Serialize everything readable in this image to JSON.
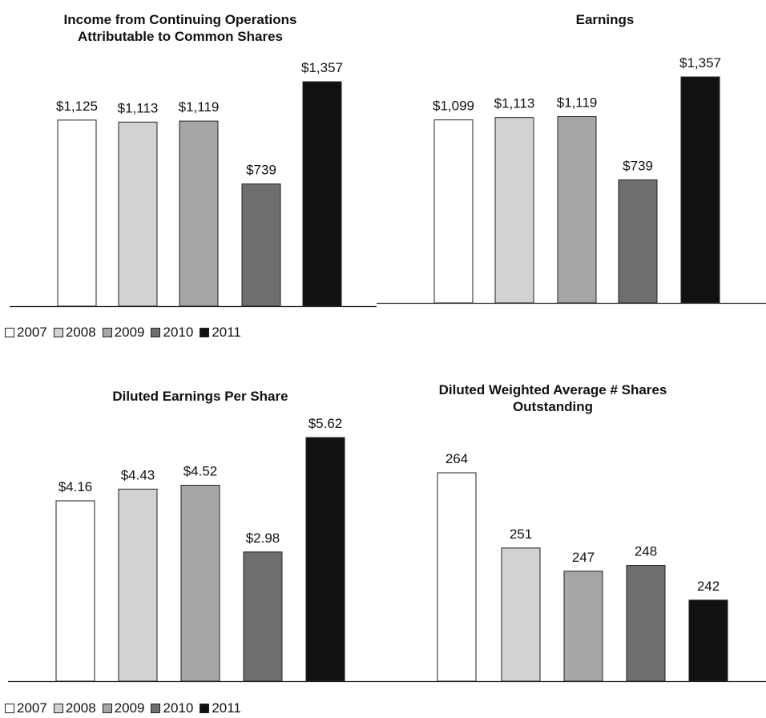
{
  "colors": {
    "2007": "#ffffff",
    "2008": "#d2d2d2",
    "2009": "#a6a6a6",
    "2010": "#6e6e6e",
    "2011": "#111111"
  },
  "legend": [
    "2007",
    "2008",
    "2009",
    "2010",
    "2011"
  ],
  "chart_data": [
    {
      "type": "bar",
      "title": "Income from Continuing Operations Attributable to Common Shares",
      "title_lines": [
        "Income from Continuing Operations",
        "Attributable to Common Shares"
      ],
      "categories": [
        "2007",
        "2008",
        "2009",
        "2010",
        "2011"
      ],
      "values": [
        1125,
        1113,
        1119,
        739,
        1357
      ],
      "labels": [
        "$1,125",
        "$1,113",
        "$1,119",
        "$739",
        "$1,357"
      ],
      "ylim": [
        0,
        1357
      ],
      "grid": false
    },
    {
      "type": "bar",
      "title": "Earnings",
      "title_lines": [
        "Earnings"
      ],
      "categories": [
        "2007",
        "2008",
        "2009",
        "2010",
        "2011"
      ],
      "values": [
        1099,
        1113,
        1119,
        739,
        1357
      ],
      "labels": [
        "$1,099",
        "$1,113",
        "$1,119",
        "$739",
        "$1,357"
      ],
      "ylim": [
        0,
        1357
      ],
      "grid": false
    },
    {
      "type": "bar",
      "title": "Diluted Earnings Per Share",
      "title_lines": [
        "Diluted Earnings Per Share"
      ],
      "categories": [
        "2007",
        "2008",
        "2009",
        "2010",
        "2011"
      ],
      "values": [
        4.16,
        4.43,
        4.52,
        2.98,
        5.62
      ],
      "labels": [
        "$4.16",
        "$4.43",
        "$4.52",
        "$2.98",
        "$5.62"
      ],
      "ylim": [
        0,
        5.62
      ],
      "grid": false
    },
    {
      "type": "bar",
      "title": "Diluted Weighted Average # Shares Outstanding",
      "title_lines": [
        "Diluted Weighted Average # Shares",
        "Outstanding"
      ],
      "categories": [
        "2007",
        "2008",
        "2009",
        "2010",
        "2011"
      ],
      "values": [
        264,
        251,
        247,
        248,
        242
      ],
      "labels": [
        "264",
        "251",
        "247",
        "248",
        "242"
      ],
      "ylim": [
        228,
        264
      ],
      "grid": false
    }
  ]
}
